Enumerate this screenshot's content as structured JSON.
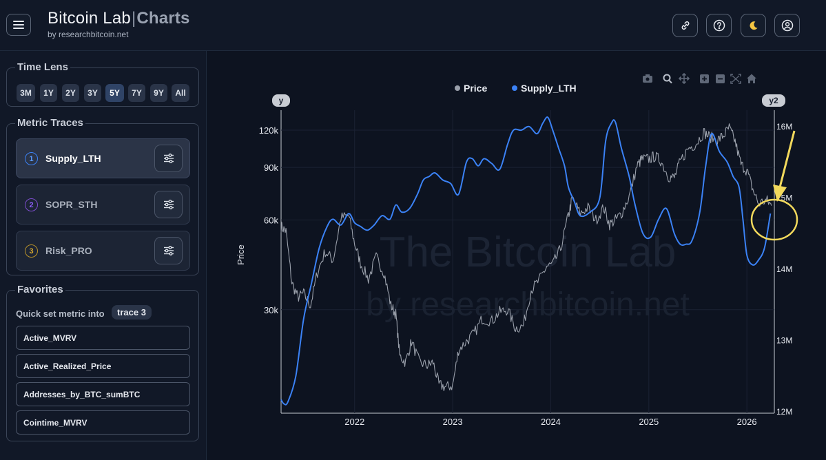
{
  "header": {
    "brand_main": "Bitcoin Lab",
    "brand_sep": "|",
    "brand_accent": "Charts",
    "brand_sub": "by researchbitcoin.net",
    "buttons": [
      "link-icon",
      "help-icon",
      "moon-icon",
      "user-icon"
    ]
  },
  "sidebar": {
    "time_lens": {
      "title": "Time Lens",
      "options": [
        "3M",
        "1Y",
        "2Y",
        "3Y",
        "5Y",
        "7Y",
        "9Y",
        "All"
      ],
      "selected": "5Y"
    },
    "metric_traces": {
      "title": "Metric Traces",
      "items": [
        {
          "num": "1",
          "label": "Supply_LTH",
          "color": "#3b82f6"
        },
        {
          "num": "2",
          "label": "SOPR_STH",
          "color": "#8b5cf6"
        },
        {
          "num": "3",
          "label": "Risk_PRO",
          "color": "#eab308"
        }
      ]
    },
    "favorites": {
      "title": "Favorites",
      "hint": "Quick set metric into",
      "target": "trace 3",
      "items": [
        "Active_MVRV",
        "Active_Realized_Price",
        "Addresses_by_BTC_sumBTC",
        "Cointime_MVRV"
      ]
    }
  },
  "chart": {
    "toolbar_icons": [
      "camera-icon",
      "zoom-icon",
      "pan-icon",
      "zoom-in-icon",
      "zoom-out-icon",
      "autoscale-icon",
      "home-icon"
    ],
    "watermark_line1": "The Bitcoin Lab",
    "watermark_line2": "by researchbitcoin.net",
    "y_badge": "y",
    "y2_badge": "y2"
  },
  "chart_data": {
    "type": "line",
    "legend": [
      "Price",
      "Supply_LTH"
    ],
    "legend_placement": "top-center",
    "colors": {
      "Price": "#9aa0ab",
      "Supply_LTH": "#3b82f6"
    },
    "ylabel": "Price",
    "y_scale": "log",
    "y_ticks": [
      {
        "label": "120k",
        "value": 120000
      },
      {
        "label": "90k",
        "value": 90000
      },
      {
        "label": "60k",
        "value": 60000
      },
      {
        "label": "30k",
        "value": 30000
      }
    ],
    "y2_ticks": [
      {
        "label": "16M",
        "value": 16000000
      },
      {
        "label": "15M",
        "value": 15000000
      },
      {
        "label": "14M",
        "value": 14000000
      },
      {
        "label": "13M",
        "value": 13000000
      },
      {
        "label": "12M",
        "value": 12000000
      }
    ],
    "x_ticks": [
      {
        "label": "2022",
        "value": 2022.0
      },
      {
        "label": "2023",
        "value": 2023.0
      },
      {
        "label": "2024",
        "value": 2024.0
      },
      {
        "label": "2025",
        "value": 2025.0
      },
      {
        "label": "2026",
        "value": 2026.0
      }
    ],
    "xlim": [
      2021.25,
      2026.28
    ],
    "ylim_price": [
      13500,
      140000
    ],
    "ylim_y2": [
      11980000,
      16230000
    ],
    "series": [
      {
        "name": "Price",
        "x": [
          2021.25,
          2021.3,
          2021.36,
          2021.42,
          2021.48,
          2021.55,
          2021.62,
          2021.7,
          2021.78,
          2021.86,
          2021.94,
          2022.0,
          2022.06,
          2022.14,
          2022.22,
          2022.3,
          2022.37,
          2022.42,
          2022.46,
          2022.52,
          2022.58,
          2022.66,
          2022.74,
          2022.8,
          2022.86,
          2022.93,
          2023.0,
          2023.06,
          2023.14,
          2023.22,
          2023.3,
          2023.4,
          2023.48,
          2023.56,
          2023.64,
          2023.72,
          2023.8,
          2023.88,
          2023.96,
          2024.02,
          2024.1,
          2024.18,
          2024.22,
          2024.3,
          2024.38,
          2024.46,
          2024.54,
          2024.6,
          2024.66,
          2024.72,
          2024.8,
          2024.88,
          2024.93,
          2025.0,
          2025.06,
          2025.12,
          2025.2,
          2025.26,
          2025.32,
          2025.4,
          2025.48,
          2025.56,
          2025.62,
          2025.7,
          2025.76,
          2025.82,
          2025.88,
          2025.94,
          2026.0,
          2026.06,
          2026.12,
          2026.2,
          2026.25
        ],
        "y": [
          57000,
          55000,
          37000,
          33000,
          34000,
          31000,
          40000,
          47000,
          44000,
          61000,
          62000,
          50000,
          43000,
          38000,
          45000,
          40000,
          31000,
          29000,
          21000,
          20000,
          23500,
          20000,
          19500,
          20000,
          16800,
          16500,
          16700,
          22000,
          23500,
          25000,
          28000,
          27500,
          29500,
          30000,
          26000,
          26500,
          35000,
          37500,
          42000,
          42500,
          48000,
          62000,
          71000,
          63000,
          66000,
          60000,
          66000,
          58000,
          60000,
          63000,
          72000,
          91000,
          96000,
          96000,
          98000,
          95000,
          84000,
          83000,
          94000,
          104000,
          108000,
          118000,
          114000,
          111000,
          115000,
          122000,
          110000,
          92000,
          88000,
          76000,
          68000,
          70000,
          67000
        ]
      },
      {
        "name": "Supply_LTH",
        "x": [
          2021.25,
          2021.28,
          2021.32,
          2021.4,
          2021.48,
          2021.56,
          2021.64,
          2021.72,
          2021.78,
          2021.86,
          2021.94,
          2022.0,
          2022.06,
          2022.1,
          2022.14,
          2022.2,
          2022.28,
          2022.36,
          2022.42,
          2022.48,
          2022.56,
          2022.64,
          2022.7,
          2022.76,
          2022.82,
          2022.9,
          2022.98,
          2023.06,
          2023.14,
          2023.2,
          2023.26,
          2023.32,
          2023.4,
          2023.48,
          2023.56,
          2023.62,
          2023.7,
          2023.78,
          2023.86,
          2023.92,
          2023.97,
          2024.02,
          2024.08,
          2024.14,
          2024.18,
          2024.24,
          2024.3,
          2024.4,
          2024.5,
          2024.56,
          2024.62,
          2024.66,
          2024.72,
          2024.8,
          2024.86,
          2024.94,
          2025.02,
          2025.1,
          2025.18,
          2025.26,
          2025.32,
          2025.38,
          2025.44,
          2025.52,
          2025.58,
          2025.64,
          2025.72,
          2025.8,
          2025.86,
          2025.92,
          2025.96,
          2026.0,
          2026.06,
          2026.12,
          2026.18,
          2026.24
        ],
        "y": [
          12170000,
          12110000,
          12140000,
          12500000,
          13300000,
          13800000,
          14300000,
          14600000,
          14700000,
          14620000,
          14780000,
          14650000,
          14600000,
          14560000,
          14550000,
          14620000,
          14750000,
          14700000,
          14900000,
          14800000,
          14850000,
          15050000,
          15250000,
          15300000,
          15350000,
          15250000,
          15200000,
          15050000,
          15500000,
          15550000,
          15450000,
          15550000,
          15480000,
          15400000,
          15750000,
          15950000,
          15950000,
          16000000,
          15900000,
          16050000,
          16130000,
          15950000,
          15700000,
          15450000,
          15150000,
          14950000,
          14750000,
          14800000,
          15000000,
          15800000,
          16050000,
          16060000,
          15700000,
          15300000,
          14900000,
          14500000,
          14450000,
          14700000,
          14850000,
          14500000,
          14350000,
          14350000,
          14400000,
          14800000,
          15450000,
          15900000,
          15650000,
          15500000,
          15300000,
          15150000,
          14700000,
          14200000,
          14060000,
          14130000,
          14300000,
          14780000
        ]
      }
    ]
  }
}
